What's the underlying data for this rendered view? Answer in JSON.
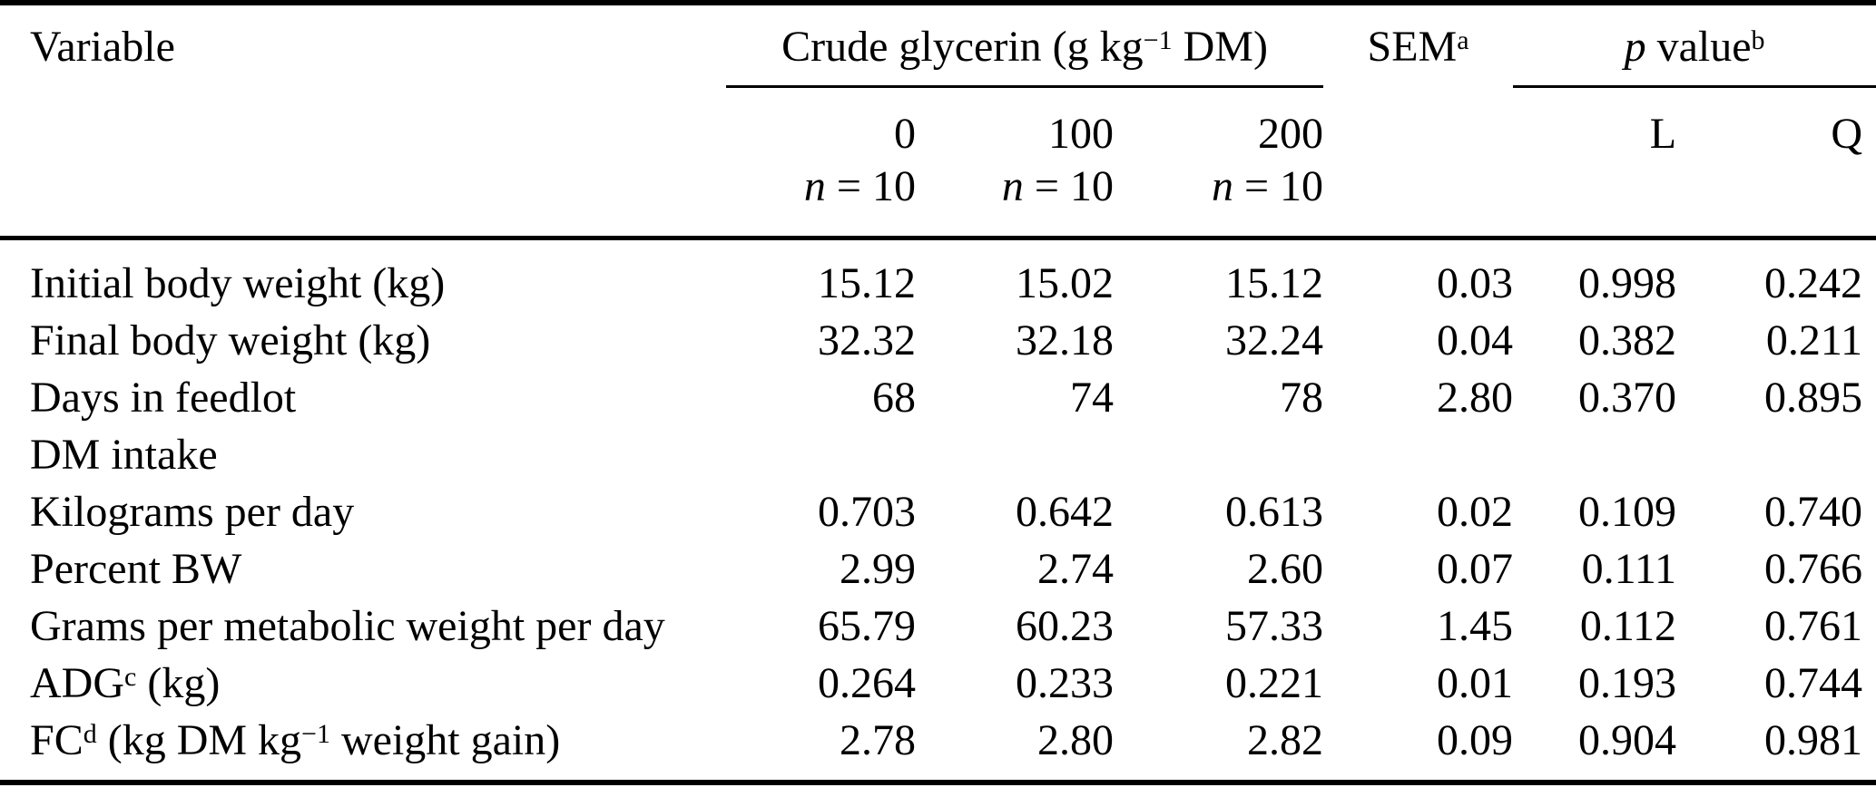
{
  "table": {
    "header": {
      "variable": "Variable",
      "crude_glycerin": {
        "text": "Crude glycerin (g kg",
        "sup": "−1",
        "after": " DM)"
      },
      "sem": {
        "text": "SEM",
        "sup": "a"
      },
      "p_value": {
        "italic": "p",
        "text": " value",
        "sup": "b"
      },
      "doses": [
        {
          "level": "0",
          "n_italic": "n",
          "n_rest": " = 10"
        },
        {
          "level": "100",
          "n_italic": "n",
          "n_rest": " = 10"
        },
        {
          "level": "200",
          "n_italic": "n",
          "n_rest": " = 10"
        }
      ],
      "contrasts": {
        "linear": "L",
        "quadratic": "Q"
      }
    },
    "rows": [
      {
        "label": "Initial body weight (kg)",
        "values": [
          "15.12",
          "15.02",
          "15.12",
          "0.03",
          "0.998",
          "0.242"
        ]
      },
      {
        "label": "Final body weight (kg)",
        "values": [
          "32.32",
          "32.18",
          "32.24",
          "0.04",
          "0.382",
          "0.211"
        ]
      },
      {
        "label": "Days in feedlot",
        "values": [
          "68",
          "74",
          "78",
          "2.80",
          "0.370",
          "0.895"
        ]
      },
      {
        "label": "DM intake",
        "values": [
          "",
          "",
          "",
          "",
          "",
          ""
        ]
      },
      {
        "label": "Kilograms per day",
        "values": [
          "0.703",
          "0.642",
          "0.613",
          "0.02",
          "0.109",
          "0.740"
        ]
      },
      {
        "label": "Percent BW",
        "values": [
          "2.99",
          "2.74",
          "2.60",
          "0.07",
          "0.111",
          "0.766"
        ]
      },
      {
        "label": "Grams per metabolic weight per day",
        "values": [
          "65.79",
          "60.23",
          "57.33",
          "1.45",
          "0.112",
          "0.761"
        ]
      },
      {
        "label": "ADG",
        "label_sup": "c",
        "label_mid": " (kg)",
        "values": [
          "0.264",
          "0.233",
          "0.221",
          "0.01",
          "0.193",
          "0.744"
        ]
      },
      {
        "label": "FC",
        "label_sup": "d",
        "label_mid": " (kg DM kg",
        "label_sup2": "−1",
        "label_after": " weight gain)",
        "values": [
          "2.78",
          "2.80",
          "2.82",
          "0.09",
          "0.904",
          "0.981"
        ]
      }
    ],
    "colors": {
      "text": "#000000",
      "background": "#ffffff",
      "rule": "#000000"
    }
  }
}
